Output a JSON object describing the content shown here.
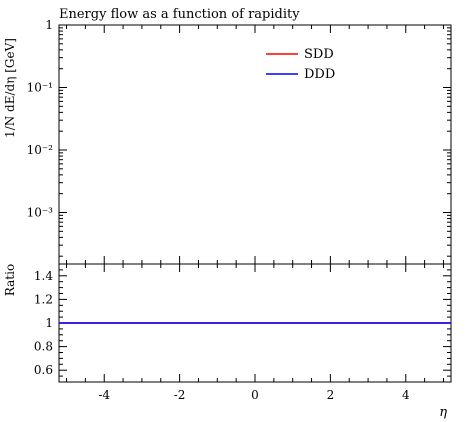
{
  "chart_data": {
    "type": "line",
    "title": "Energy flow as a function of rapidity",
    "xlabel": "η",
    "main": {
      "ylabel": "1/N dE/dη [GeV]",
      "yscale": "log",
      "ylim": [
        0.00015,
        1
      ],
      "yticks": [
        {
          "value": 1,
          "label": "1"
        },
        {
          "value": 0.1,
          "label": "10⁻¹"
        },
        {
          "value": 0.01,
          "label": "10⁻²"
        },
        {
          "value": 0.001,
          "label": "10⁻³"
        }
      ],
      "legend_position": "top-right",
      "series": [
        {
          "name": "SDD",
          "color": "#ff0000",
          "x": [],
          "y": []
        },
        {
          "name": "DDD",
          "color": "#0000ff",
          "x": [],
          "y": []
        }
      ]
    },
    "ratio": {
      "ylabel": "Ratio",
      "ylim": [
        0.5,
        1.5
      ],
      "yticks": [
        {
          "value": 1.4,
          "label": "1.4"
        },
        {
          "value": 1.2,
          "label": "1.2"
        },
        {
          "value": 1.0,
          "label": "1"
        },
        {
          "value": 0.8,
          "label": "0.8"
        },
        {
          "value": 0.6,
          "label": "0.6"
        }
      ],
      "series": [
        {
          "name": "SDD",
          "color": "#ff0000",
          "x": [
            -5.2,
            5.2
          ],
          "y": [
            1,
            1
          ]
        },
        {
          "name": "DDD",
          "color": "#0000ff",
          "x": [
            -5.2,
            5.2
          ],
          "y": [
            1,
            1
          ]
        }
      ]
    },
    "xlim": [
      -5.2,
      5.2
    ],
    "xticks": [
      {
        "value": -4,
        "label": "-4"
      },
      {
        "value": -2,
        "label": "-2"
      },
      {
        "value": 0,
        "label": "0"
      },
      {
        "value": 2,
        "label": "2"
      },
      {
        "value": 4,
        "label": "4"
      }
    ],
    "grid": false
  }
}
